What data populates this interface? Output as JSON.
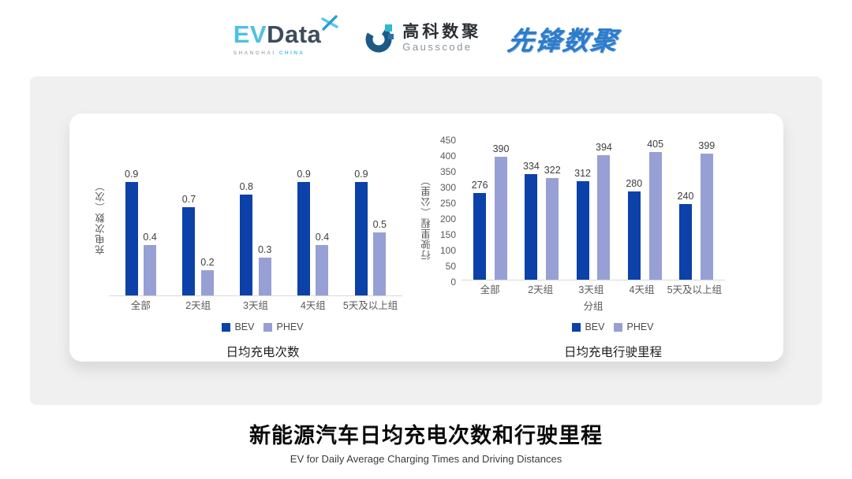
{
  "logos": {
    "evdata": {
      "ev": "EV",
      "data": "Data",
      "sub_left": "SHANGHAI",
      "sub_right": "CHINA"
    },
    "gausscode": {
      "cn": "高科数聚",
      "en": "Gausscode"
    },
    "pioneer": {
      "text": "先锋数聚"
    }
  },
  "chart_data": [
    {
      "type": "bar",
      "title": "日均充电次数",
      "ylabel": "充电次数（次）",
      "xlabel": "",
      "categories": [
        "全部",
        "2天组",
        "3天组",
        "4天组",
        "5天及以上组"
      ],
      "series": [
        {
          "name": "BEV",
          "color": "#0B41A8",
          "values": [
            0.9,
            0.7,
            0.8,
            0.9,
            0.9
          ]
        },
        {
          "name": "PHEV",
          "color": "#96A0D4",
          "values": [
            0.4,
            0.2,
            0.3,
            0.4,
            0.5
          ]
        }
      ],
      "ylim": [
        0,
        1.0
      ],
      "yticks": [],
      "grid": false,
      "legend_position": "bottom"
    },
    {
      "type": "bar",
      "title": "日均充电行驶里程",
      "ylabel": "行驶里程（公里）",
      "xlabel": "分组",
      "categories": [
        "全部",
        "2天组",
        "3天组",
        "4天组",
        "5天及以上组"
      ],
      "series": [
        {
          "name": "BEV",
          "color": "#0B41A8",
          "values": [
            276,
            334,
            312,
            280,
            240
          ]
        },
        {
          "name": "PHEV",
          "color": "#96A0D4",
          "values": [
            390,
            322,
            394,
            405,
            399
          ]
        }
      ],
      "ylim": [
        0,
        450
      ],
      "yticks": [
        450,
        400,
        350,
        300,
        250,
        200,
        150,
        100,
        50,
        0
      ],
      "grid": false,
      "legend_position": "bottom"
    }
  ],
  "page": {
    "title": "新能源汽车日均充电次数和行驶里程",
    "subtitle": "EV for Daily Average Charging Times and Driving Distances"
  },
  "colors": {
    "bev": "#0B41A8",
    "phev": "#96A0D4",
    "card_bg": "#F0F0F1",
    "axis_line": "#D9D9D9"
  }
}
